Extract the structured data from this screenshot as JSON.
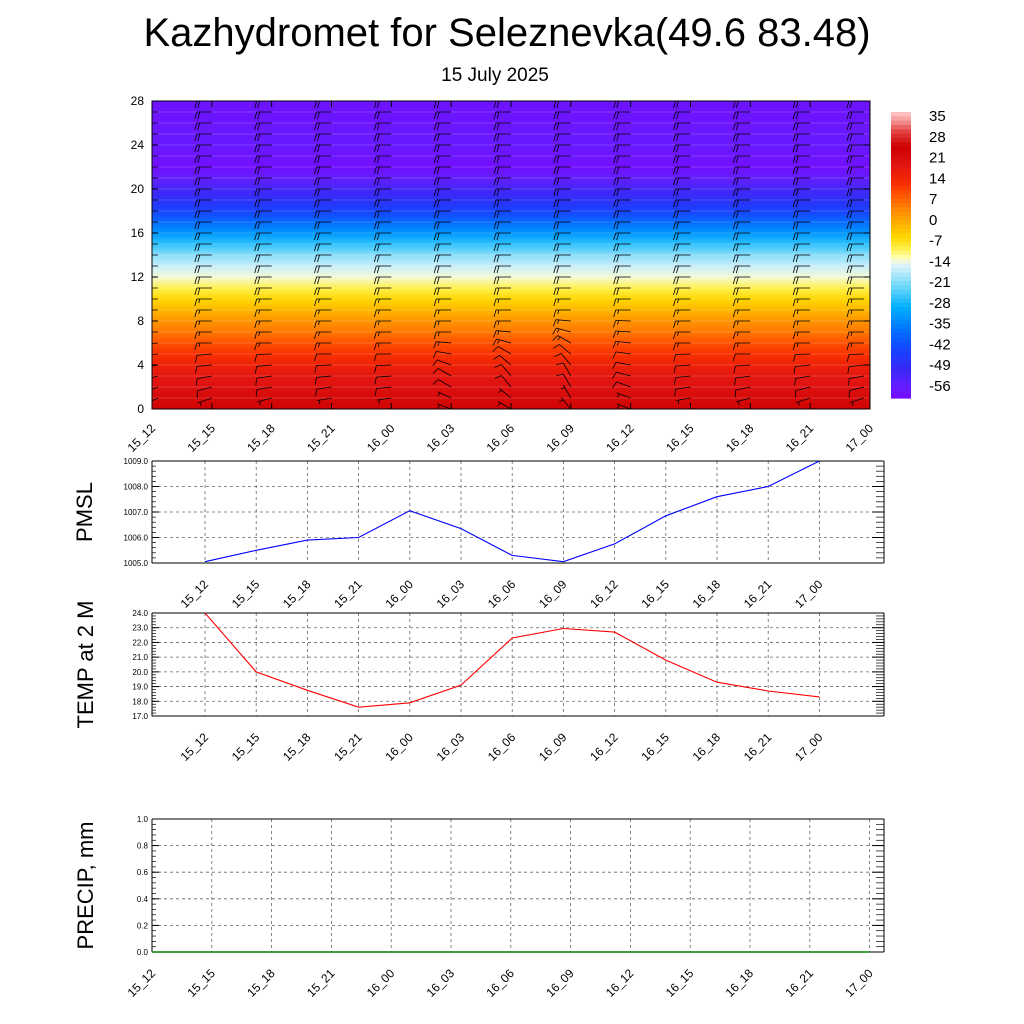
{
  "page": {
    "title": "Kazhydromet for Seleznevka(49.6 83.48)",
    "subtitle": "15 July 2025"
  },
  "colors": {
    "pmsl_line": "#0000ff",
    "temp_line": "#ff0000",
    "precip_line": "#008000",
    "grid": "#666666",
    "barb": "#000000"
  },
  "chart_data": [
    {
      "type": "heatmap",
      "title": "",
      "xlabel": "",
      "ylabel": "",
      "x_ticks": [
        "15_12",
        "15_15",
        "15_18",
        "15_21",
        "16_00",
        "16_03",
        "16_06",
        "16_09",
        "16_12",
        "16_15",
        "16_18",
        "16_21",
        "17_00"
      ],
      "y_ticks": [
        0,
        4,
        8,
        12,
        16,
        20,
        24,
        28
      ],
      "ylim": [
        0,
        28
      ],
      "levels": [
        0,
        1,
        2,
        3,
        4,
        5,
        6,
        7,
        8,
        9,
        10,
        11,
        12,
        13,
        14,
        15,
        16,
        17,
        18,
        19,
        20,
        21,
        22,
        23,
        24,
        25,
        26,
        27,
        28
      ],
      "temperature_by_level": [
        25,
        23,
        21,
        19,
        16,
        13,
        10,
        6,
        3,
        -1,
        -5,
        -9,
        -13,
        -16,
        -20,
        -26,
        -32,
        -38,
        -44,
        -48,
        -52,
        -56,
        -59,
        -58,
        -57,
        -57,
        -58,
        -58,
        -58
      ],
      "colorbar": {
        "labels": [
          "35",
          "28",
          "21",
          "14",
          "7",
          "0",
          "-7",
          "-14",
          "-21",
          "-28",
          "-35",
          "-42",
          "-49",
          "-56"
        ],
        "range": [
          -60,
          38
        ]
      },
      "wind_barbs": {
        "columns": 13,
        "every_level": true,
        "direction_deg_from": [
          [
            240,
            245,
            250,
            255,
            260,
            265,
            265,
            270,
            270,
            270,
            270,
            270,
            270,
            270,
            270,
            270,
            270,
            270,
            270,
            270,
            270,
            270,
            270,
            270,
            270,
            270,
            270,
            270,
            270
          ],
          [
            250,
            250,
            255,
            260,
            265,
            265,
            270,
            270,
            270,
            270,
            270,
            270,
            270,
            270,
            270,
            270,
            270,
            270,
            270,
            270,
            270,
            270,
            270,
            270,
            270,
            270,
            270,
            270,
            270
          ],
          [
            250,
            255,
            260,
            262,
            265,
            268,
            270,
            270,
            270,
            270,
            270,
            270,
            270,
            270,
            270,
            270,
            270,
            270,
            270,
            270,
            270,
            270,
            270,
            270,
            270,
            270,
            270,
            270,
            270
          ],
          [
            260,
            260,
            262,
            265,
            268,
            270,
            270,
            270,
            270,
            270,
            270,
            270,
            270,
            270,
            270,
            270,
            270,
            270,
            270,
            270,
            270,
            270,
            270,
            270,
            270,
            270,
            270,
            270,
            270
          ],
          [
            260,
            262,
            264,
            266,
            268,
            270,
            270,
            270,
            270,
            270,
            270,
            270,
            270,
            270,
            270,
            270,
            270,
            270,
            270,
            270,
            270,
            270,
            270,
            270,
            270,
            270,
            270,
            270,
            270
          ],
          [
            290,
            295,
            300,
            300,
            290,
            280,
            275,
            270,
            270,
            270,
            270,
            270,
            270,
            270,
            270,
            270,
            270,
            270,
            270,
            270,
            270,
            270,
            270,
            270,
            270,
            270,
            270,
            270,
            270
          ],
          [
            300,
            310,
            320,
            320,
            310,
            300,
            285,
            275,
            270,
            270,
            270,
            270,
            270,
            270,
            270,
            270,
            270,
            270,
            270,
            270,
            270,
            270,
            270,
            270,
            270,
            270,
            270,
            270,
            270
          ],
          [
            320,
            330,
            330,
            330,
            320,
            310,
            300,
            285,
            275,
            270,
            270,
            270,
            270,
            270,
            270,
            270,
            270,
            270,
            270,
            270,
            270,
            270,
            270,
            270,
            270,
            270,
            270,
            270,
            270
          ],
          [
            290,
            290,
            290,
            285,
            280,
            278,
            276,
            274,
            272,
            270,
            270,
            270,
            270,
            270,
            270,
            270,
            270,
            270,
            270,
            270,
            270,
            270,
            270,
            270,
            270,
            270,
            270,
            270,
            270
          ],
          [
            260,
            260,
            262,
            264,
            266,
            268,
            270,
            270,
            270,
            270,
            270,
            270,
            270,
            270,
            270,
            270,
            270,
            270,
            270,
            270,
            270,
            270,
            270,
            270,
            270,
            270,
            270,
            270,
            270
          ],
          [
            250,
            255,
            258,
            262,
            266,
            270,
            270,
            270,
            270,
            270,
            270,
            270,
            270,
            270,
            270,
            270,
            270,
            270,
            270,
            270,
            270,
            270,
            270,
            270,
            270,
            270,
            270,
            270,
            270
          ],
          [
            250,
            252,
            256,
            260,
            264,
            268,
            270,
            270,
            270,
            270,
            270,
            270,
            270,
            270,
            270,
            270,
            270,
            270,
            270,
            270,
            270,
            270,
            270,
            270,
            270,
            270,
            270,
            270,
            270
          ],
          [
            250,
            252,
            256,
            260,
            264,
            268,
            270,
            270,
            270,
            270,
            270,
            270,
            270,
            270,
            270,
            270,
            270,
            270,
            270,
            270,
            270,
            270,
            270,
            270,
            270,
            270,
            270,
            270,
            270
          ]
        ],
        "speed_knots": [
          5,
          5,
          10,
          10,
          10,
          10,
          15,
          15,
          15,
          15,
          15,
          20,
          20,
          20,
          20,
          20,
          20,
          20,
          20,
          20,
          20,
          20,
          20,
          20,
          20,
          20,
          20,
          20,
          20
        ]
      }
    },
    {
      "type": "line",
      "title": "",
      "xlabel": "",
      "ylabel": "PMSL",
      "categories": [
        "15_12",
        "15_15",
        "15_18",
        "15_21",
        "16_00",
        "16_03",
        "16_06",
        "16_09",
        "16_12",
        "16_15",
        "16_18",
        "16_21",
        "17_00"
      ],
      "y_ticks": [
        "1005.0",
        "1006.0",
        "1007.0",
        "1008.0",
        "1009.0"
      ],
      "ylim": [
        1005,
        1009
      ],
      "values": [
        1005.05,
        1005.5,
        1005.9,
        1006.0,
        1007.05,
        1006.35,
        1005.3,
        1005.05,
        1005.75,
        1006.85,
        1007.6,
        1008.0,
        1009.0
      ],
      "grid": true
    },
    {
      "type": "line",
      "title": "",
      "xlabel": "",
      "ylabel": "TEMP at 2 M",
      "categories": [
        "15_12",
        "15_15",
        "15_18",
        "15_21",
        "16_00",
        "16_03",
        "16_06",
        "16_09",
        "16_12",
        "16_15",
        "16_18",
        "16_21",
        "17_00"
      ],
      "y_ticks": [
        "17.0",
        "18.0",
        "19.0",
        "20.0",
        "21.0",
        "22.0",
        "23.0",
        "24.0"
      ],
      "ylim": [
        17,
        24
      ],
      "values": [
        24.0,
        20.0,
        18.75,
        17.6,
        17.9,
        19.1,
        22.3,
        22.95,
        22.7,
        20.8,
        19.3,
        18.7,
        18.3
      ],
      "grid": true
    },
    {
      "type": "line",
      "title": "",
      "xlabel": "",
      "ylabel": "PRECIP, mm",
      "categories": [
        "15_12",
        "15_15",
        "15_18",
        "15_21",
        "16_00",
        "16_03",
        "16_06",
        "16_09",
        "16_12",
        "16_15",
        "16_18",
        "16_21",
        "17_00"
      ],
      "y_ticks": [
        "0.0",
        "0.2",
        "0.4",
        "0.6",
        "0.8",
        "1.0"
      ],
      "ylim": [
        0,
        1
      ],
      "values": [
        0,
        0,
        0,
        0,
        0,
        0,
        0,
        0,
        0,
        0,
        0,
        0,
        0
      ],
      "grid": true
    }
  ]
}
